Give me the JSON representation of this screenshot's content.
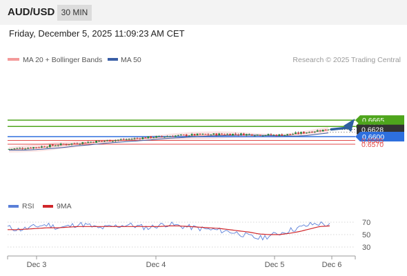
{
  "header": {
    "pair": "AUD/USD",
    "timeframe": "30 MIN"
  },
  "datetime": "Friday, December 5, 2025 11:09:23 AM CET",
  "legend": {
    "bollinger": "MA 20 + Bollinger Bands",
    "ma50": "MA 50",
    "rsi": "RSI",
    "rsi_ma": "9MA"
  },
  "source": "Research © 2025 Trading Central",
  "colors": {
    "resistance": "#4ea51c",
    "support_pivot": "#2e6fde",
    "support": "#e14a4a",
    "current": "#333333",
    "candle_up": "#1f8a3b",
    "candle_down": "#d23a3a",
    "bollinger": "#f49a9a",
    "ma50": "#3a5fa6",
    "rsi": "#5a7fd8",
    "rsi_ma": "#d0262a"
  },
  "chart_data": [
    {
      "type": "candlestick",
      "title": "AUD/USD 30 MIN",
      "x_labels": [
        "Dec 3",
        "Dec 4",
        "Dec 5",
        "Dec 6"
      ],
      "levels": [
        {
          "label": "0.6665",
          "value": 0.6665,
          "kind": "resistance"
        },
        {
          "label": "0.6640",
          "value": 0.664,
          "kind": "resistance"
        },
        {
          "label": "0.6628",
          "value": 0.6628,
          "kind": "current"
        },
        {
          "label": "0.6600",
          "value": 0.66,
          "kind": "pivot"
        },
        {
          "label": "0.6585",
          "value": 0.6585,
          "kind": "support"
        },
        {
          "label": "0.6570",
          "value": 0.657,
          "kind": "support"
        }
      ],
      "price_path": [
        0.6551,
        0.6553,
        0.6556,
        0.6559,
        0.6563,
        0.6568,
        0.6571,
        0.6575,
        0.6579,
        0.6582,
        0.6585,
        0.6588,
        0.6591,
        0.6595,
        0.6598,
        0.66,
        0.6603,
        0.6605,
        0.6607,
        0.6608,
        0.6609,
        0.661,
        0.661,
        0.6609,
        0.6608,
        0.6607,
        0.6606,
        0.6608,
        0.6613,
        0.6618,
        0.6624,
        0.6628
      ],
      "projection": {
        "from": 0.6628,
        "to": 0.6665
      }
    },
    {
      "type": "line",
      "title": "RSI",
      "series": [
        {
          "name": "RSI",
          "values": [
            62,
            58,
            60,
            64,
            66,
            61,
            63,
            67,
            65,
            60,
            62,
            64,
            66,
            63,
            61,
            65,
            67,
            64,
            62,
            60,
            58,
            57,
            55,
            52,
            47,
            44,
            48,
            52,
            57,
            61,
            66,
            68,
            65
          ]
        },
        {
          "name": "9MA",
          "values": [
            58,
            58,
            59,
            60,
            61,
            61,
            62,
            63,
            63,
            63,
            63,
            63,
            63,
            63,
            63,
            63,
            64,
            64,
            63,
            62,
            61,
            60,
            58,
            56,
            54,
            51,
            50,
            50,
            52,
            55,
            59,
            63,
            64
          ]
        }
      ],
      "ticks": [
        "70",
        "50",
        "30"
      ],
      "ylim": [
        20,
        80
      ]
    }
  ]
}
